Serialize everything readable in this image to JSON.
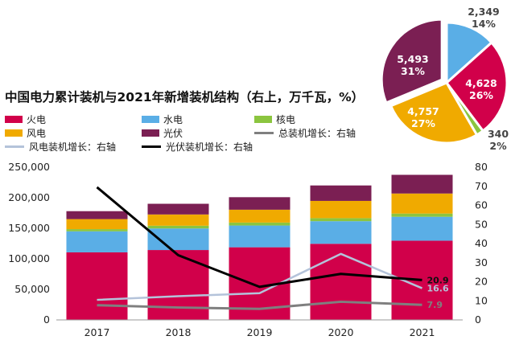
{
  "title": "中国电力累计装机与2021年新增装机结构（右上，万千瓦，%）",
  "legend": [
    {
      "label": "火电",
      "kind": "bar",
      "color": "#d1004a"
    },
    {
      "label": "水电",
      "kind": "bar",
      "color": "#5aaee6"
    },
    {
      "label": "核电",
      "kind": "bar",
      "color": "#8bc53f"
    },
    {
      "label": "风电",
      "kind": "bar",
      "color": "#f0aa00"
    },
    {
      "label": "光伏",
      "kind": "bar",
      "color": "#7b1f53"
    },
    {
      "label": "总装机增长：右轴",
      "kind": "line",
      "color": "#7f7f7f"
    },
    {
      "label": "风电装机增长：右轴",
      "kind": "line",
      "color": "#b4c3da"
    },
    {
      "label": "光伏装机增长：右轴",
      "kind": "line",
      "color": "#000000"
    }
  ],
  "chart_data": [
    {
      "type": "bar",
      "stacked": true,
      "categories": [
        "2017",
        "2018",
        "2019",
        "2020",
        "2021"
      ],
      "series": [
        {
          "name": "火电",
          "color": "#d1004a",
          "values": [
            110600,
            114400,
            118900,
            124600,
            129700
          ]
        },
        {
          "name": "水电",
          "color": "#5aaee6",
          "values": [
            34400,
            35300,
            35600,
            37000,
            39100
          ]
        },
        {
          "name": "核电",
          "color": "#8bc53f",
          "values": [
            3600,
            4500,
            4900,
            5000,
            5300
          ]
        },
        {
          "name": "风电",
          "color": "#f0aa00",
          "values": [
            16400,
            18400,
            21000,
            28200,
            32800
          ]
        },
        {
          "name": "光伏",
          "color": "#7b1f53",
          "values": [
            13000,
            17500,
            20500,
            25300,
            30600
          ]
        }
      ],
      "ylim": [
        0,
        250000
      ],
      "yticks": [
        "0",
        "50,000",
        "100,000",
        "150,000",
        "200,000",
        "250,000"
      ],
      "y2lim": [
        0,
        80
      ],
      "y2ticks": [
        "0",
        "10",
        "20",
        "30",
        "40",
        "50",
        "60",
        "70",
        "80"
      ],
      "lines": [
        {
          "name": "总装机增长：右轴",
          "color": "#7f7f7f",
          "values": [
            7.7,
            6.5,
            5.8,
            9.5,
            7.9
          ],
          "end_label": "7.9"
        },
        {
          "name": "风电装机增长：右轴",
          "color": "#b4c3da",
          "values": [
            10.5,
            12.4,
            14.0,
            34.6,
            16.6
          ],
          "end_label": "16.6"
        },
        {
          "name": "光伏装机增长：右轴",
          "color": "#000000",
          "values": [
            69.5,
            33.9,
            17.3,
            24.1,
            20.9
          ],
          "end_label": "20.9"
        }
      ]
    },
    {
      "type": "pie",
      "slices": [
        {
          "name": "光伏",
          "value": 5493,
          "value_label": "5,493",
          "percent_label": "31%",
          "color": "#7b1f53"
        },
        {
          "name": "水电",
          "value": 2349,
          "value_label": "2,349",
          "percent_label": "14%",
          "color": "#5aaee6"
        },
        {
          "name": "火电",
          "value": 4628,
          "value_label": "4,628",
          "percent_label": "26%",
          "color": "#d1004a"
        },
        {
          "name": "核电",
          "value": 340,
          "value_label": "340",
          "percent_label": "2%",
          "color": "#8bc53f"
        },
        {
          "name": "风电",
          "value": 4757,
          "value_label": "4,757",
          "percent_label": "27%",
          "color": "#f0aa00"
        }
      ]
    }
  ]
}
